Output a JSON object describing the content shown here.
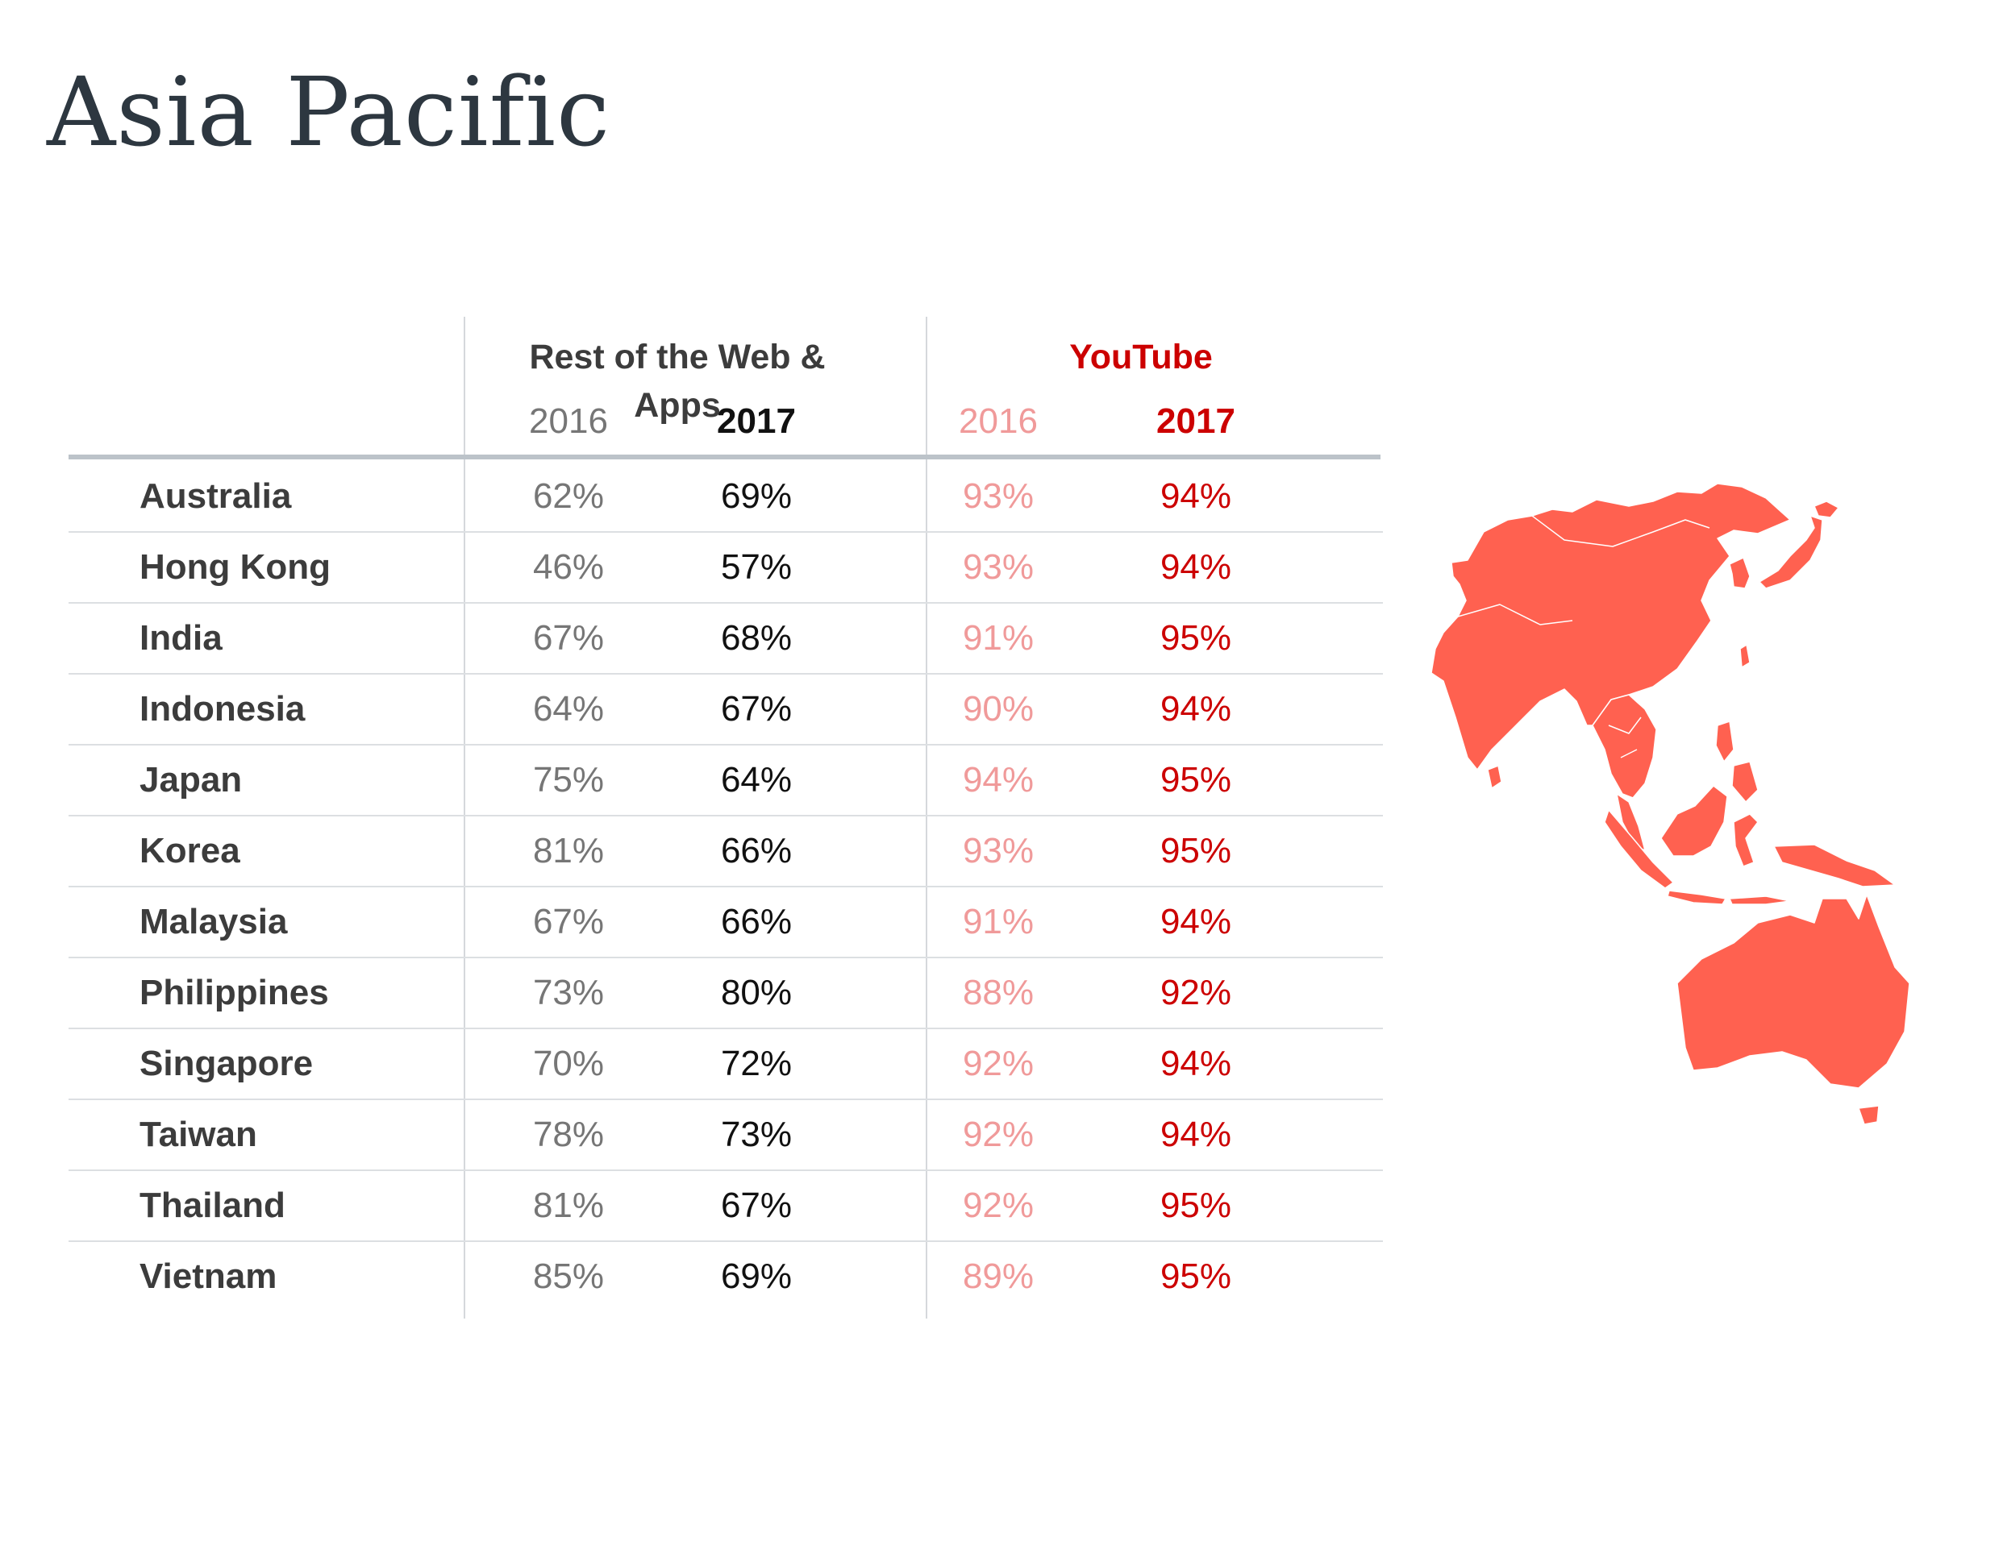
{
  "title": "Asia Pacific",
  "table": {
    "group_rest": "Rest of the Web & Apps",
    "group_youtube": "YouTube",
    "years": [
      "2016",
      "2017",
      "2016",
      "2017"
    ],
    "rows": [
      {
        "country": "Australia",
        "rest_2016": "62%",
        "rest_2017": "69%",
        "yt_2016": "93%",
        "yt_2017": "94%"
      },
      {
        "country": "Hong Kong",
        "rest_2016": "46%",
        "rest_2017": "57%",
        "yt_2016": "93%",
        "yt_2017": "94%"
      },
      {
        "country": "India",
        "rest_2016": "67%",
        "rest_2017": "68%",
        "yt_2016": "91%",
        "yt_2017": "95%"
      },
      {
        "country": "Indonesia",
        "rest_2016": "64%",
        "rest_2017": "67%",
        "yt_2016": "90%",
        "yt_2017": "94%"
      },
      {
        "country": "Japan",
        "rest_2016": "75%",
        "rest_2017": "64%",
        "yt_2016": "94%",
        "yt_2017": "95%"
      },
      {
        "country": "Korea",
        "rest_2016": "81%",
        "rest_2017": "66%",
        "yt_2016": "93%",
        "yt_2017": "95%"
      },
      {
        "country": "Malaysia",
        "rest_2016": "67%",
        "rest_2017": "66%",
        "yt_2016": "91%",
        "yt_2017": "94%"
      },
      {
        "country": "Philippines",
        "rest_2016": "73%",
        "rest_2017": "80%",
        "yt_2016": "88%",
        "yt_2017": "92%"
      },
      {
        "country": "Singapore",
        "rest_2016": "70%",
        "rest_2017": "72%",
        "yt_2016": "92%",
        "yt_2017": "94%"
      },
      {
        "country": "Taiwan",
        "rest_2016": "78%",
        "rest_2017": "73%",
        "yt_2016": "92%",
        "yt_2017": "94%"
      },
      {
        "country": "Thailand",
        "rest_2016": "81%",
        "rest_2017": "67%",
        "yt_2016": "92%",
        "yt_2017": "95%"
      },
      {
        "country": "Vietnam",
        "rest_2016": "85%",
        "rest_2017": "69%",
        "yt_2016": "89%",
        "yt_2017": "95%"
      }
    ]
  },
  "colors": {
    "title": "#2d3740",
    "group_rest": "#3c3c3c",
    "youtube": "#cc0000",
    "rest_2016": "#767676",
    "rest_2017": "#111111",
    "yt_2016": "#f09a9a",
    "yt_2017": "#cc0000",
    "map": "#ff6150"
  },
  "map": {
    "icon": "asia-pacific-map-icon"
  }
}
